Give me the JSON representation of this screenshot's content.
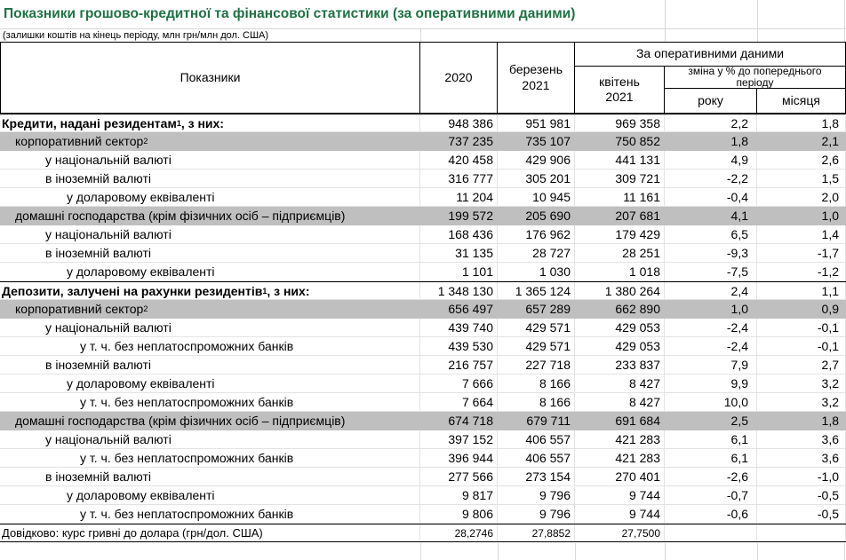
{
  "title": "Показники грошово-кредитної та фінансової статистики (за оперативними даними)",
  "subtitle": "(залишки коштів на кінець періоду, млн грн/млн дол. США)",
  "colors": {
    "title_green": "#1F7245",
    "row_band_gray": "#BFBFBF",
    "grid_line": "#D9D9D9",
    "border_black": "#000000"
  },
  "table": {
    "header": {
      "indicators": "Показники",
      "col_2020": "2020",
      "col_march": "березень 2021",
      "operational_group": "За оперативними даними",
      "col_april": "квітень 2021",
      "change_group": "зміна у % до попереднього періоду",
      "col_year": "року",
      "col_month": "місяця"
    },
    "rows": [
      {
        "label": "Кредити, надані резидентам",
        "sup": "1",
        "suffix": ", з них:",
        "indent": 0,
        "style": "section",
        "values": [
          "948 386",
          "951 981",
          "969 358",
          "2,2",
          "1,8"
        ]
      },
      {
        "label": "корпоративний сектор",
        "sup": "2",
        "suffix": "",
        "indent": 1,
        "style": "gray",
        "values": [
          "737 235",
          "735 107",
          "750 852",
          "1,8",
          "2,1"
        ]
      },
      {
        "label": "у національній валюті",
        "sup": "",
        "suffix": "",
        "indent": 2,
        "style": "plain",
        "values": [
          "420 458",
          "429 906",
          "441 131",
          "4,9",
          "2,6"
        ]
      },
      {
        "label": "в іноземній валюті",
        "sup": "",
        "suffix": "",
        "indent": 2,
        "style": "plain",
        "values": [
          "316 777",
          "305 201",
          "309 721",
          "-2,2",
          "1,5"
        ]
      },
      {
        "label": "у доларовому еквіваленті",
        "sup": "",
        "suffix": "",
        "indent": 3,
        "style": "plain",
        "values": [
          "11 204",
          "10 945",
          "11 161",
          "-0,4",
          "2,0"
        ]
      },
      {
        "label": "домашні господарства (крім фізичних осіб – підприємців)",
        "sup": "",
        "suffix": "",
        "indent": 1,
        "style": "gray",
        "values": [
          "199 572",
          "205 690",
          "207 681",
          "4,1",
          "1,0"
        ]
      },
      {
        "label": "у національній валюті",
        "sup": "",
        "suffix": "",
        "indent": 2,
        "style": "plain",
        "values": [
          "168 436",
          "176 962",
          "179 429",
          "6,5",
          "1,4"
        ]
      },
      {
        "label": "в іноземній валюті",
        "sup": "",
        "suffix": "",
        "indent": 2,
        "style": "plain",
        "values": [
          "31 135",
          "28 727",
          "28 251",
          "-9,3",
          "-1,7"
        ]
      },
      {
        "label": "у доларовому еквіваленті",
        "sup": "",
        "suffix": "",
        "indent": 3,
        "style": "plain",
        "values": [
          "1 101",
          "1 030",
          "1 018",
          "-7,5",
          "-1,2"
        ]
      },
      {
        "label": "Депозити, залучені на рахунки резидентів",
        "sup": "1",
        "suffix": ", з них:",
        "indent": 0,
        "style": "section",
        "values": [
          "1 348 130",
          "1 365 124",
          "1 380 264",
          "2,4",
          "1,1"
        ]
      },
      {
        "label": "корпоративний сектор",
        "sup": "2",
        "suffix": "",
        "indent": 1,
        "style": "gray",
        "values": [
          "656 497",
          "657 289",
          "662 890",
          "1,0",
          "0,9"
        ]
      },
      {
        "label": "у національній валюті",
        "sup": "",
        "suffix": "",
        "indent": 2,
        "style": "plain",
        "values": [
          "439 740",
          "429 571",
          "429 053",
          "-2,4",
          "-0,1"
        ]
      },
      {
        "label": "у т. ч. без неплатоспроможних банків",
        "sup": "",
        "suffix": "",
        "indent": 4,
        "style": "plain",
        "values": [
          "439 530",
          "429 571",
          "429 053",
          "-2,4",
          "-0,1"
        ]
      },
      {
        "label": "в іноземній валюті",
        "sup": "",
        "suffix": "",
        "indent": 2,
        "style": "plain",
        "values": [
          "216 757",
          "227 718",
          "233 837",
          "7,9",
          "2,7"
        ]
      },
      {
        "label": "у доларовому еквіваленті",
        "sup": "",
        "suffix": "",
        "indent": 3,
        "style": "plain",
        "values": [
          "7 666",
          "8 166",
          "8 427",
          "9,9",
          "3,2"
        ]
      },
      {
        "label": "у т. ч. без неплатоспроможних банків",
        "sup": "",
        "suffix": "",
        "indent": 4,
        "style": "plain",
        "values": [
          "7 664",
          "8 166",
          "8 427",
          "10,0",
          "3,2"
        ]
      },
      {
        "label": "домашні господарства (крім фізичних осіб – підприємців)",
        "sup": "",
        "suffix": "",
        "indent": 1,
        "style": "gray",
        "values": [
          "674 718",
          "679 711",
          "691 684",
          "2,5",
          "1,8"
        ]
      },
      {
        "label": "у національній валюті",
        "sup": "",
        "suffix": "",
        "indent": 2,
        "style": "plain",
        "values": [
          "397 152",
          "406 557",
          "421 283",
          "6,1",
          "3,6"
        ]
      },
      {
        "label": "у т. ч. без неплатоспроможних банків",
        "sup": "",
        "suffix": "",
        "indent": 4,
        "style": "plain",
        "values": [
          "396 944",
          "406 557",
          "421 283",
          "6,1",
          "3,6"
        ]
      },
      {
        "label": "в іноземній валюті",
        "sup": "",
        "suffix": "",
        "indent": 2,
        "style": "plain",
        "values": [
          "277 566",
          "273 154",
          "270 401",
          "-2,6",
          "-1,0"
        ]
      },
      {
        "label": "у доларовому еквіваленті",
        "sup": "",
        "suffix": "",
        "indent": 3,
        "style": "plain",
        "values": [
          "9 817",
          "9 796",
          "9 744",
          "-0,7",
          "-0,5"
        ]
      },
      {
        "label": "у т. ч. без неплатоспроможних банків",
        "sup": "",
        "suffix": "",
        "indent": 4,
        "style": "plain",
        "values": [
          "9 806",
          "9 796",
          "9 744",
          "-0,6",
          "-0,5"
        ]
      },
      {
        "label": "Довідково: курс гривні до долара (грн/дол. США)",
        "sup": "",
        "suffix": "",
        "indent": 0,
        "style": "reference",
        "values": [
          "28,2746",
          "27,8852",
          "27,7500",
          "",
          ""
        ]
      }
    ]
  }
}
